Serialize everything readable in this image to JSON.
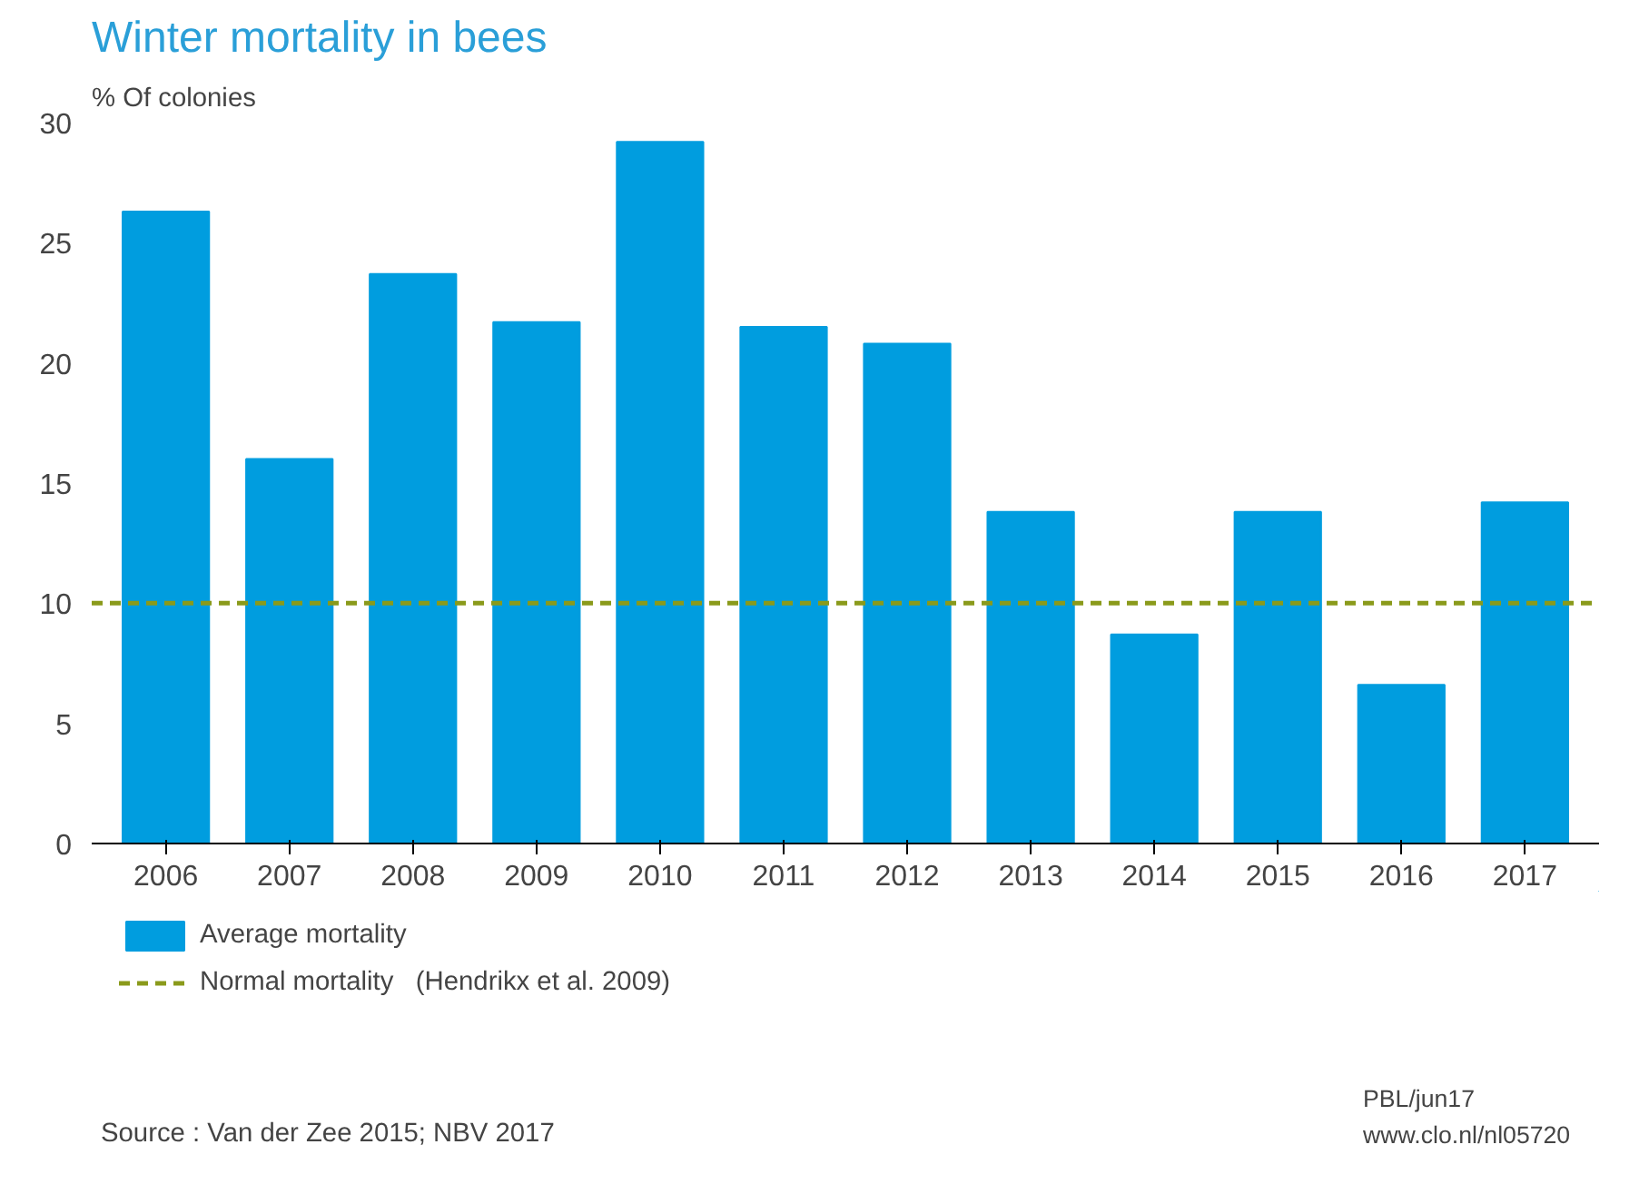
{
  "chart_data": {
    "type": "bar",
    "title": "Winter mortality in bees",
    "ylabel": "% Of colonies",
    "categories": [
      "2006",
      "2007",
      "2008",
      "2009",
      "2010",
      "2011",
      "2012",
      "2013",
      "2014",
      "2015",
      "2016",
      "2017"
    ],
    "series": [
      {
        "name": "Average mortality",
        "color": "#009ddf",
        "values": [
          26.3,
          16.0,
          23.7,
          21.7,
          29.2,
          21.5,
          20.8,
          13.8,
          8.7,
          13.8,
          6.6,
          14.2
        ]
      }
    ],
    "ylim": [
      0,
      30
    ],
    "yticks": [
      0,
      5,
      10,
      15,
      20,
      25,
      30
    ],
    "grid": false,
    "legend": "bottom",
    "ref_lines": [
      {
        "axis": "y",
        "value": 10,
        "label": "Normal mortality   (Hendrikx et al. 2009)",
        "color": "#8a9a1b",
        "line_style": "dashed"
      }
    ],
    "annotations": [
      "Source : Van der Zee 2015; NBV 2017",
      "PBL/jun17",
      "www.clo.nl/nl05720"
    ]
  }
}
